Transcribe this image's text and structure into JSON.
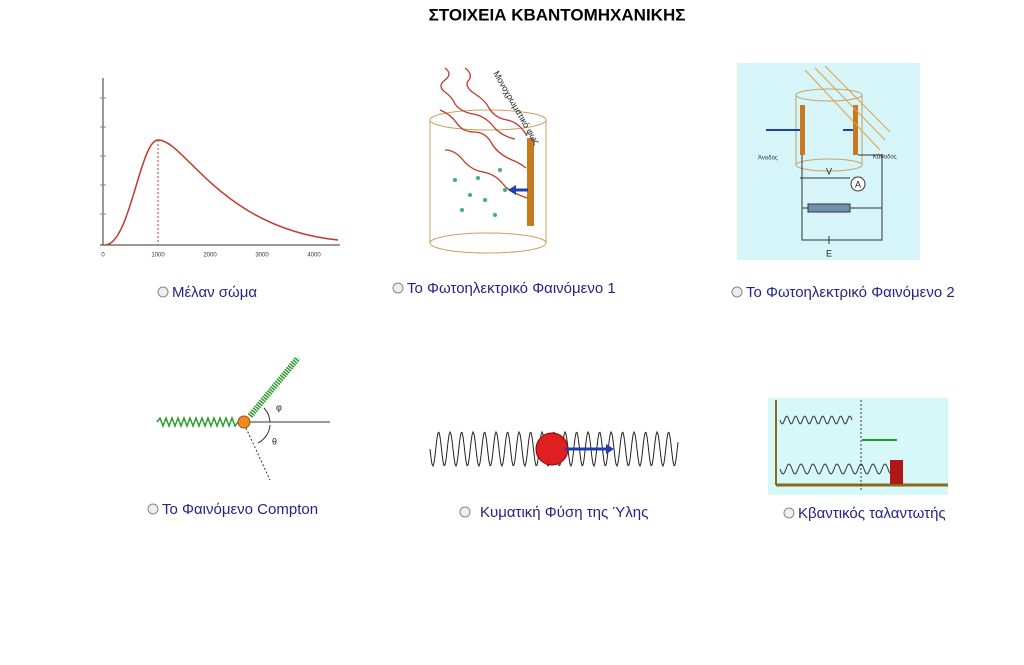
{
  "header": {
    "title": "ΣΤΟΙΧΕΙΑ ΚΒΑΝΤΟΜΗΧΑΝΙΚΗΣ"
  },
  "items": [
    {
      "label": "Μέλαν σώμα",
      "figure_texts": [
        "0",
        "1000",
        "2000",
        "3000",
        "4000"
      ]
    },
    {
      "label": "Το Φωτοηλεκτρικό Φαινόμενο 1",
      "figure_texts": [
        "Μονοχρωματικό φως"
      ]
    },
    {
      "label": "Το Φωτοηλεκτρικό Φαινόμενο 2",
      "figure_texts": [
        "Άνοδος",
        "Κάθοδος",
        "V",
        "A",
        "E"
      ]
    },
    {
      "label": "Το Φαινόμενο Compton",
      "figure_texts": [
        "θ",
        "φ"
      ]
    },
    {
      "label": "Κυματική Φύση της Ύλης",
      "figure_texts": []
    },
    {
      "label": "Κβαντικός ταλαντωτής",
      "figure_texts": []
    }
  ]
}
